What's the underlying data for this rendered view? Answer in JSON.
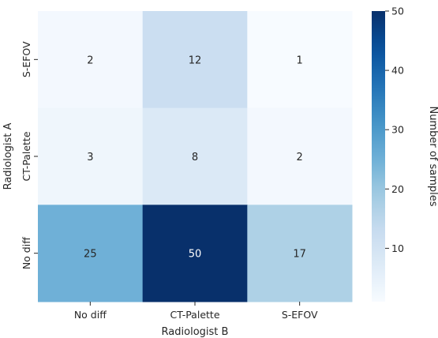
{
  "chart_data": {
    "type": "heatmap",
    "title": "",
    "xlabel": "Radiologist B",
    "ylabel": "Radiologist A",
    "x_categories": [
      "No diff",
      "CT-Palette",
      "S-EFOV"
    ],
    "y_categories": [
      "S-EFOV",
      "CT-Palette",
      "No diff"
    ],
    "values": [
      [
        2,
        12,
        1
      ],
      [
        3,
        8,
        2
      ],
      [
        25,
        50,
        17
      ]
    ],
    "colormap": "Blues",
    "vmin": 1,
    "vmax": 50,
    "colorbar": {
      "label": "Number of samples",
      "ticks": [
        10,
        20,
        30,
        40,
        50
      ]
    },
    "annotations": true
  }
}
